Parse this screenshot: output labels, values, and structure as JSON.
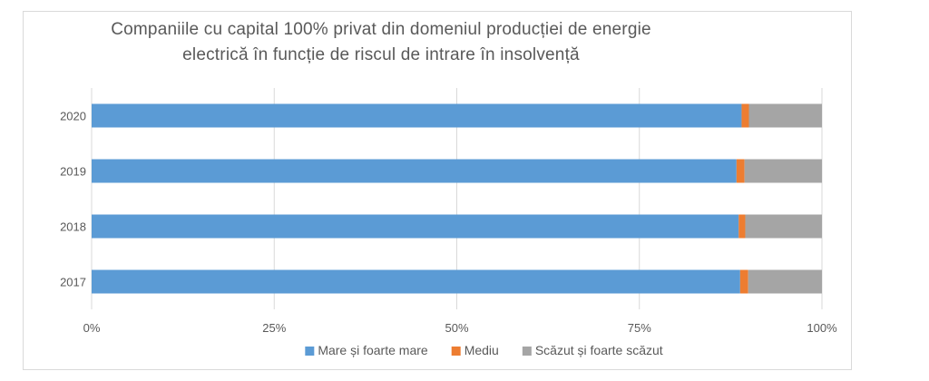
{
  "chart_data": {
    "type": "bar",
    "orientation": "horizontal",
    "stacked": true,
    "stacking": "percent",
    "title": "Companiile cu capital 100% privat din domeniul producției de energie electrică în funcție de riscul de intrare în insolvență",
    "title_lines": [
      "Companiile cu capital 100% privat din domeniul producției de energie",
      "electrică în funcție de riscul de intrare în insolvență"
    ],
    "categories": [
      "2020",
      "2019",
      "2018",
      "2017"
    ],
    "series": [
      {
        "name": "Mare și foarte mare",
        "color": "#5b9bd5",
        "values": [
          89.0,
          88.3,
          88.6,
          88.8
        ]
      },
      {
        "name": "Mediu",
        "color": "#ed7d31",
        "values": [
          1.0,
          1.1,
          0.9,
          1.1
        ]
      },
      {
        "name": "Scăzut și foarte scăzut",
        "color": "#a5a5a5",
        "values": [
          10.0,
          10.6,
          10.5,
          10.1
        ]
      }
    ],
    "xlim": [
      0,
      100
    ],
    "x_ticks": [
      0,
      25,
      50,
      75,
      100
    ],
    "x_tick_labels": [
      "0%",
      "25%",
      "50%",
      "75%",
      "100%"
    ],
    "xlabel": "",
    "ylabel": "",
    "grid": {
      "vertical": true,
      "color": "#d9d9d9"
    },
    "legend_position": "bottom"
  }
}
